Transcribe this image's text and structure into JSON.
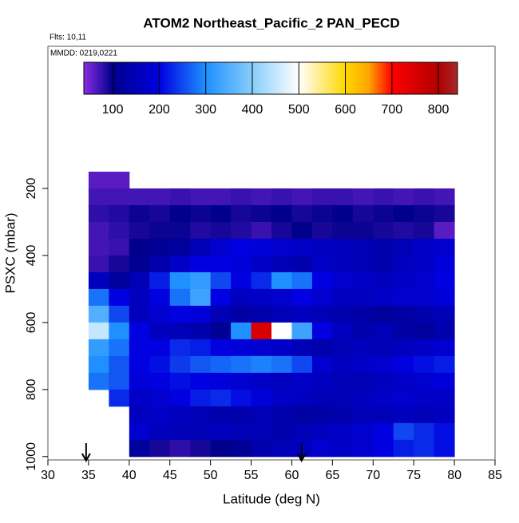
{
  "chart_data": {
    "type": "heatmap",
    "title": "ATOM2 Northeast_Pacific_2 PAN_PECD",
    "subtitle": "Flts: 10,11",
    "annotation": "MMDD: 0219,0221",
    "x_label": "Latitude (deg N)",
    "y_label": "PSXC (mbar)",
    "xlim": [
      30,
      85
    ],
    "xticks": [
      30,
      35,
      40,
      45,
      50,
      55,
      60,
      65,
      70,
      75,
      80,
      85
    ],
    "ylim": [
      1010,
      -224
    ],
    "yticks": [
      200,
      400,
      600,
      800,
      1000
    ],
    "x_edges": [
      35,
      37.5,
      40,
      42.5,
      45,
      47.5,
      50,
      52.5,
      55,
      57.5,
      60,
      62.5,
      65,
      67.5,
      70,
      72.5,
      75,
      77.5,
      80
    ],
    "y_edges": [
      150,
      200,
      250,
      300,
      350,
      400,
      450,
      500,
      550,
      600,
      650,
      700,
      750,
      800,
      850,
      900,
      950,
      1000
    ],
    "z": [
      [
        60,
        60,
        null,
        null,
        null,
        null,
        null,
        null,
        null,
        null,
        null,
        null,
        null,
        null,
        null,
        null,
        null,
        null
      ],
      [
        70,
        70,
        70,
        70,
        75,
        70,
        70,
        75,
        70,
        75,
        70,
        75,
        75,
        70,
        75,
        70,
        75,
        70
      ],
      [
        80,
        85,
        95,
        90,
        100,
        95,
        100,
        90,
        95,
        100,
        90,
        95,
        100,
        90,
        95,
        100,
        95,
        90
      ],
      [
        70,
        80,
        90,
        95,
        95,
        85,
        90,
        85,
        75,
        90,
        100,
        90,
        95,
        95,
        90,
        85,
        90,
        60
      ],
      [
        70,
        75,
        100,
        110,
        120,
        150,
        180,
        200,
        190,
        180,
        170,
        160,
        160,
        150,
        140,
        150,
        170,
        180
      ],
      [
        75,
        90,
        110,
        140,
        170,
        200,
        200,
        190,
        170,
        150,
        140,
        170,
        160,
        150,
        140,
        160,
        170,
        190
      ],
      [
        160,
        120,
        150,
        220,
        300,
        320,
        250,
        200,
        230,
        300,
        280,
        200,
        180,
        170,
        160,
        170,
        180,
        200
      ],
      [
        280,
        200,
        160,
        200,
        280,
        330,
        200,
        160,
        170,
        180,
        200,
        180,
        160,
        160,
        170,
        180,
        180,
        190
      ],
      [
        350,
        250,
        160,
        180,
        200,
        190,
        150,
        130,
        140,
        150,
        160,
        150,
        140,
        130,
        120,
        130,
        140,
        150
      ],
      [
        450,
        300,
        200,
        160,
        150,
        140,
        110,
        300,
        750,
        500,
        330,
        200,
        160,
        140,
        150,
        130,
        120,
        140
      ],
      [
        320,
        280,
        200,
        200,
        230,
        220,
        200,
        190,
        180,
        170,
        150,
        140,
        150,
        160,
        150,
        160,
        170,
        180
      ],
      [
        300,
        260,
        200,
        210,
        240,
        260,
        270,
        280,
        290,
        280,
        250,
        180,
        160,
        170,
        180,
        200,
        210,
        220
      ],
      [
        280,
        260,
        190,
        200,
        210,
        200,
        190,
        180,
        170,
        160,
        170,
        160,
        150,
        150,
        160,
        170,
        180,
        190
      ],
      [
        null,
        230,
        170,
        180,
        200,
        220,
        230,
        210,
        190,
        170,
        160,
        150,
        150,
        160,
        170,
        180,
        170,
        170
      ],
      [
        null,
        null,
        160,
        170,
        160,
        150,
        140,
        140,
        150,
        140,
        130,
        130,
        140,
        150,
        150,
        160,
        150,
        160
      ],
      [
        null,
        null,
        180,
        160,
        150,
        150,
        160,
        150,
        150,
        140,
        150,
        160,
        170,
        180,
        200,
        250,
        230,
        210
      ],
      [
        null,
        null,
        120,
        90,
        80,
        90,
        100,
        110,
        140,
        150,
        160,
        180,
        170,
        180,
        200,
        220,
        230,
        210
      ]
    ],
    "colorbar_lim": [
      38,
      841
    ],
    "colorbar_ticks": [
      100,
      200,
      300,
      400,
      500,
      600,
      700,
      800
    ],
    "colorscale": [
      [
        38,
        "#8a2be2"
      ],
      [
        100,
        "#00008b"
      ],
      [
        200,
        "#0000e0"
      ],
      [
        300,
        "#1e90ff"
      ],
      [
        400,
        "#87cefa"
      ],
      [
        500,
        "#ffffff"
      ],
      [
        600,
        "#ffd700"
      ],
      [
        650,
        "#ffa500"
      ],
      [
        700,
        "#ff0000"
      ],
      [
        800,
        "#b00000"
      ],
      [
        841,
        "#a52a2a"
      ]
    ],
    "arrows_x": [
      34.7,
      61.2
    ]
  }
}
